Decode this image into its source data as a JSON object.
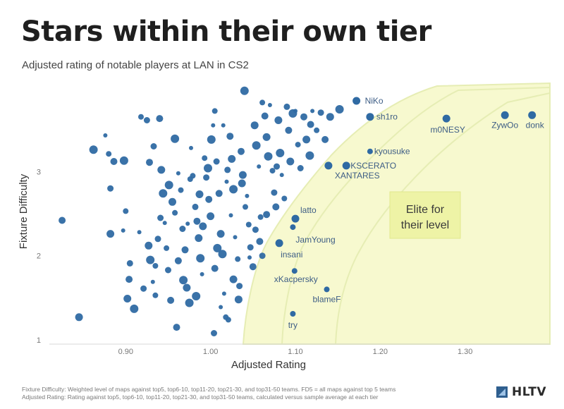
{
  "header": {
    "title": "Stars within their own tier",
    "subtitle": "Adjusted rating of notable players at LAN in CS2"
  },
  "footer": {
    "note_line1": "Fixture Difficulty: Weighted level of maps against top5, top6-10, top11-20, top21-30, and top31-50 teams. FD5 = all maps against top 5 teams",
    "note_line2": "Adjusted Rating: Rating against top5, top6-10, top11-20, top21-30, and top31-50 teams, calculated versus sample average at each tier",
    "brand": "HLTV",
    "brand_icon": "hltv-logo-icon"
  },
  "colors": {
    "dot": "#2f6aa3",
    "label": "#3d5d85",
    "band_fill": "#f7f9cf",
    "band_stroke": "#e6edb4",
    "callout_fill": "#eef3a6",
    "axis_text": "#777777"
  },
  "chart_data": {
    "type": "scatter",
    "xlabel": "Adjusted Rating",
    "ylabel": "Fixture Difficulty",
    "xlim": [
      0.81,
      1.4
    ],
    "ylim": [
      0.95,
      4.1
    ],
    "xticks": [
      0.9,
      1.0,
      1.1,
      1.2,
      1.3
    ],
    "xtick_labels": [
      "0.90",
      "1.00",
      "1.10",
      "1.20",
      "1.30"
    ],
    "yticks": [
      1,
      2,
      3
    ],
    "ytick_labels": [
      "1",
      "2",
      "3"
    ],
    "grid": false,
    "callout": "Elite for\ntheir level",
    "labeled_points": [
      {
        "name": "NiKo",
        "x": 1.172,
        "y": 3.84
      },
      {
        "name": "sh1ro",
        "x": 1.188,
        "y": 3.65
      },
      {
        "name": "m0NESY",
        "x": 1.278,
        "y": 3.63
      },
      {
        "name": "ZywOo",
        "x": 1.347,
        "y": 3.67
      },
      {
        "name": "donk",
        "x": 1.379,
        "y": 3.67
      },
      {
        "name": "kyousuke",
        "x": 1.188,
        "y": 3.24
      },
      {
        "name": "KSCERATO",
        "x": 1.16,
        "y": 3.07
      },
      {
        "name": "XANTARES",
        "x": 1.139,
        "y": 3.07
      },
      {
        "name": "latto",
        "x": 1.1,
        "y": 2.44
      },
      {
        "name": "JamYoung",
        "x": 1.097,
        "y": 2.34
      },
      {
        "name": "insani",
        "x": 1.081,
        "y": 2.15
      },
      {
        "name": "xKacpersky",
        "x": 1.099,
        "y": 1.82
      },
      {
        "name": "blameF",
        "x": 1.137,
        "y": 1.6
      },
      {
        "name": "try",
        "x": 1.097,
        "y": 1.31
      }
    ],
    "points": [
      {
        "x": 0.825,
        "y": 2.42
      },
      {
        "x": 0.845,
        "y": 1.27
      },
      {
        "x": 0.862,
        "y": 3.26
      },
      {
        "x": 0.876,
        "y": 3.43
      },
      {
        "x": 0.88,
        "y": 3.21
      },
      {
        "x": 0.882,
        "y": 2.8
      },
      {
        "x": 0.886,
        "y": 3.12
      },
      {
        "x": 0.882,
        "y": 2.26
      },
      {
        "x": 0.898,
        "y": 3.13
      },
      {
        "x": 0.897,
        "y": 2.3
      },
      {
        "x": 0.9,
        "y": 2.53
      },
      {
        "x": 0.905,
        "y": 1.91
      },
      {
        "x": 0.904,
        "y": 1.72
      },
      {
        "x": 0.902,
        "y": 1.49
      },
      {
        "x": 0.91,
        "y": 1.37
      },
      {
        "x": 0.916,
        "y": 2.28
      },
      {
        "x": 0.918,
        "y": 3.65
      },
      {
        "x": 0.925,
        "y": 3.61
      },
      {
        "x": 0.928,
        "y": 3.11
      },
      {
        "x": 0.927,
        "y": 2.12
      },
      {
        "x": 0.929,
        "y": 1.95
      },
      {
        "x": 0.932,
        "y": 1.69
      },
      {
        "x": 0.935,
        "y": 1.53
      },
      {
        "x": 0.933,
        "y": 3.3
      },
      {
        "x": 0.94,
        "y": 3.63
      },
      {
        "x": 0.942,
        "y": 3.02
      },
      {
        "x": 0.944,
        "y": 2.74
      },
      {
        "x": 0.946,
        "y": 2.39
      },
      {
        "x": 0.948,
        "y": 2.09
      },
      {
        "x": 0.95,
        "y": 1.83
      },
      {
        "x": 0.953,
        "y": 1.47
      },
      {
        "x": 0.955,
        "y": 2.64
      },
      {
        "x": 0.958,
        "y": 3.39
      },
      {
        "x": 0.962,
        "y": 2.98
      },
      {
        "x": 0.965,
        "y": 2.78
      },
      {
        "x": 0.967,
        "y": 2.32
      },
      {
        "x": 0.97,
        "y": 2.07
      },
      {
        "x": 0.972,
        "y": 1.62
      },
      {
        "x": 0.975,
        "y": 1.44
      },
      {
        "x": 0.977,
        "y": 3.28
      },
      {
        "x": 0.979,
        "y": 2.95
      },
      {
        "x": 0.982,
        "y": 2.58
      },
      {
        "x": 0.984,
        "y": 2.41
      },
      {
        "x": 0.986,
        "y": 2.21
      },
      {
        "x": 0.988,
        "y": 1.97
      },
      {
        "x": 0.99,
        "y": 1.78
      },
      {
        "x": 0.993,
        "y": 3.16
      },
      {
        "x": 0.995,
        "y": 2.93
      },
      {
        "x": 0.998,
        "y": 2.67
      },
      {
        "x": 1.0,
        "y": 2.47
      },
      {
        "x": 1.001,
        "y": 3.38
      },
      {
        "x": 1.003,
        "y": 3.55
      },
      {
        "x": 1.005,
        "y": 3.72
      },
      {
        "x": 1.007,
        "y": 3.12
      },
      {
        "x": 1.01,
        "y": 2.74
      },
      {
        "x": 1.012,
        "y": 2.26
      },
      {
        "x": 1.014,
        "y": 2.02
      },
      {
        "x": 1.016,
        "y": 1.55
      },
      {
        "x": 1.018,
        "y": 1.27
      },
      {
        "x": 1.02,
        "y": 3.02
      },
      {
        "x": 1.023,
        "y": 3.42
      },
      {
        "x": 1.025,
        "y": 3.15
      },
      {
        "x": 1.027,
        "y": 2.79
      },
      {
        "x": 1.029,
        "y": 2.22
      },
      {
        "x": 1.032,
        "y": 1.96
      },
      {
        "x": 1.034,
        "y": 1.64
      },
      {
        "x": 1.036,
        "y": 3.24
      },
      {
        "x": 1.038,
        "y": 2.96
      },
      {
        "x": 1.04,
        "y": 3.96
      },
      {
        "x": 1.043,
        "y": 2.71
      },
      {
        "x": 1.045,
        "y": 2.37
      },
      {
        "x": 1.047,
        "y": 2.1
      },
      {
        "x": 1.05,
        "y": 1.87
      },
      {
        "x": 1.052,
        "y": 3.55
      },
      {
        "x": 1.054,
        "y": 3.31
      },
      {
        "x": 1.057,
        "y": 3.06
      },
      {
        "x": 1.059,
        "y": 2.46
      },
      {
        "x": 1.061,
        "y": 2.0
      },
      {
        "x": 1.064,
        "y": 3.66
      },
      {
        "x": 1.066,
        "y": 3.41
      },
      {
        "x": 1.068,
        "y": 3.18
      },
      {
        "x": 1.07,
        "y": 3.79
      },
      {
        "x": 1.073,
        "y": 3.01
      },
      {
        "x": 1.075,
        "y": 2.75
      },
      {
        "x": 1.077,
        "y": 2.58
      },
      {
        "x": 1.08,
        "y": 3.61
      },
      {
        "x": 1.082,
        "y": 3.22
      },
      {
        "x": 1.084,
        "y": 2.96
      },
      {
        "x": 1.087,
        "y": 2.68
      },
      {
        "x": 1.09,
        "y": 3.77
      },
      {
        "x": 1.092,
        "y": 3.49
      },
      {
        "x": 1.094,
        "y": 3.12
      },
      {
        "x": 1.097,
        "y": 3.69
      },
      {
        "x": 1.1,
        "y": 3.72
      },
      {
        "x": 1.103,
        "y": 3.32
      },
      {
        "x": 1.106,
        "y": 3.04
      },
      {
        "x": 1.11,
        "y": 3.65
      },
      {
        "x": 1.113,
        "y": 3.38
      },
      {
        "x": 1.117,
        "y": 3.19
      },
      {
        "x": 1.12,
        "y": 3.72
      },
      {
        "x": 1.125,
        "y": 3.49
      },
      {
        "x": 1.13,
        "y": 3.7
      },
      {
        "x": 1.135,
        "y": 3.38
      },
      {
        "x": 1.141,
        "y": 3.65
      },
      {
        "x": 1.152,
        "y": 3.74
      },
      {
        "x": 0.973,
        "y": 2.38
      },
      {
        "x": 0.958,
        "y": 2.51
      },
      {
        "x": 0.938,
        "y": 2.2
      },
      {
        "x": 0.962,
        "y": 1.94
      },
      {
        "x": 0.987,
        "y": 2.73
      },
      {
        "x": 1.008,
        "y": 2.09
      },
      {
        "x": 1.024,
        "y": 2.48
      },
      {
        "x": 1.041,
        "y": 2.58
      },
      {
        "x": 1.053,
        "y": 2.31
      },
      {
        "x": 1.058,
        "y": 2.17
      },
      {
        "x": 0.991,
        "y": 2.35
      },
      {
        "x": 0.951,
        "y": 2.84
      },
      {
        "x": 1.019,
        "y": 2.88
      },
      {
        "x": 0.976,
        "y": 2.91
      },
      {
        "x": 0.941,
        "y": 2.45
      },
      {
        "x": 1.005,
        "y": 1.85
      },
      {
        "x": 1.027,
        "y": 1.72
      },
      {
        "x": 0.968,
        "y": 1.71
      },
      {
        "x": 1.012,
        "y": 1.39
      },
      {
        "x": 1.021,
        "y": 1.24
      },
      {
        "x": 1.004,
        "y": 1.08
      },
      {
        "x": 0.96,
        "y": 1.15
      },
      {
        "x": 1.033,
        "y": 1.48
      },
      {
        "x": 0.983,
        "y": 1.52
      },
      {
        "x": 1.046,
        "y": 1.98
      },
      {
        "x": 0.935,
        "y": 1.88
      },
      {
        "x": 0.921,
        "y": 1.61
      },
      {
        "x": 1.066,
        "y": 2.49
      },
      {
        "x": 1.037,
        "y": 2.86
      },
      {
        "x": 0.997,
        "y": 3.04
      },
      {
        "x": 1.015,
        "y": 3.55
      },
      {
        "x": 1.061,
        "y": 3.82
      },
      {
        "x": 1.078,
        "y": 3.06
      },
      {
        "x": 1.118,
        "y": 3.56
      }
    ]
  }
}
